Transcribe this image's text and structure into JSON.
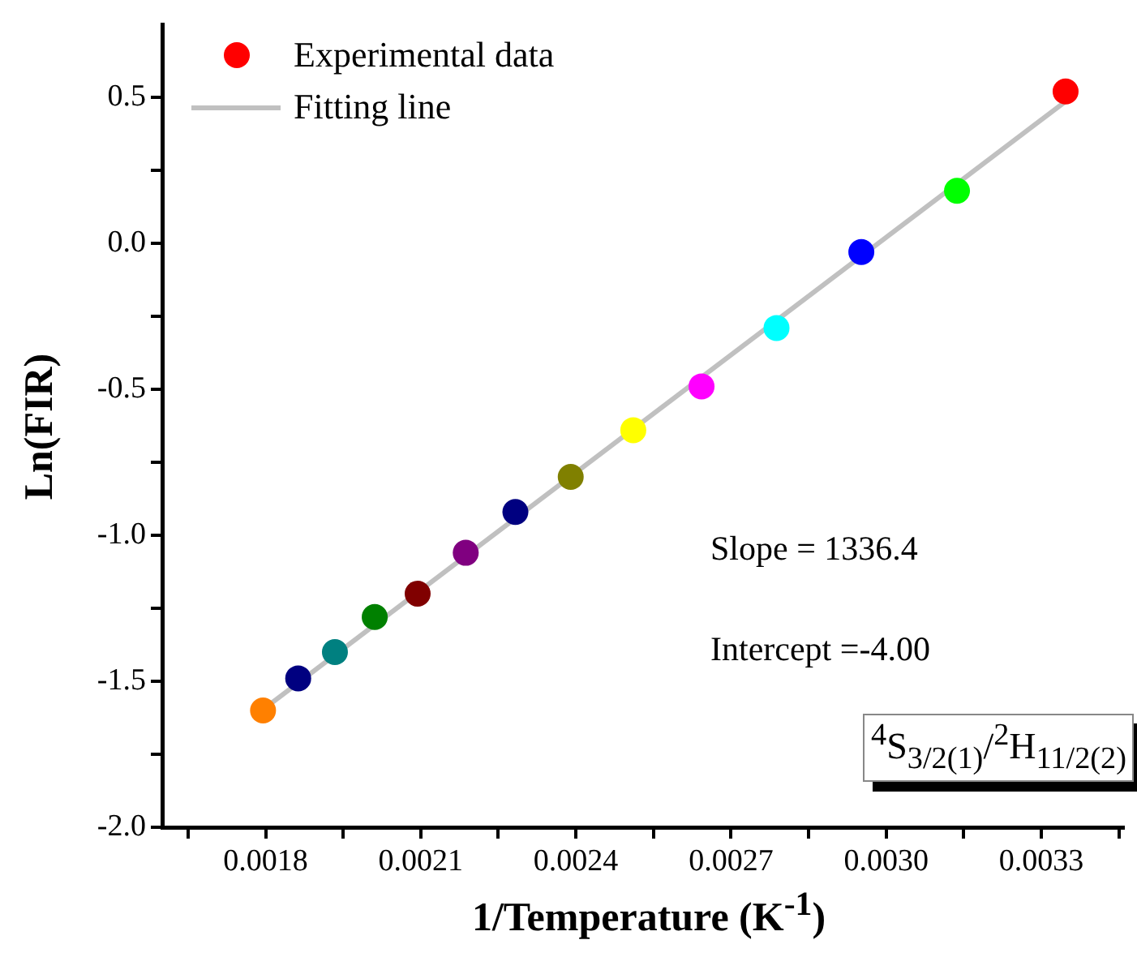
{
  "chart_data": {
    "type": "scatter",
    "xlabel": "1/Temperature (K$^{-1}$)",
    "ylabel": "Ln(FIR)",
    "annotations": [
      "Slope = 1336.4",
      "Intercept =-4.00",
      "$^{4}$S$_{3/2(1)}$/$^{2}$H$_{11/2(2)}$"
    ],
    "xlim": [
      0.0016,
      0.00346
    ],
    "ylim": [
      -2.0,
      0.75
    ],
    "xticks": [
      {
        "value": 0.00165,
        "label": null
      },
      0.0018,
      {
        "value": 0.00195,
        "label": null
      },
      0.0021,
      {
        "value": 0.00225,
        "label": null
      },
      0.0024,
      {
        "value": 0.00255,
        "label": null
      },
      0.0027,
      {
        "value": 0.00285,
        "label": null
      },
      {
        "value": 0.003,
        "label": "0.0030"
      },
      {
        "value": 0.00315,
        "label": null
      },
      0.0033,
      {
        "value": 0.00345,
        "label": null
      }
    ],
    "yticks": [
      {
        "value": -2,
        "label": "-2.0"
      },
      {
        "value": -1.75,
        "label": null
      },
      -1.5,
      {
        "value": -1.25,
        "label": null
      },
      {
        "value": -1,
        "label": "-1.0"
      },
      {
        "value": -0.75,
        "label": null
      },
      -0.5,
      {
        "value": -0.25,
        "label": null
      },
      {
        "value": 0,
        "label": "0.0"
      },
      {
        "value": 0.25,
        "label": null
      },
      0.5
    ],
    "legend": "top left",
    "series": [
      {
        "name": "Experimental data",
        "type": "scatter",
        "marker": "circle",
        "color": "#ff0000",
        "colors": [
          "#ff8000",
          "#000080",
          "#008080",
          "#008000",
          "#800000",
          "#800080",
          "#000080",
          "#808000",
          "#ffff00",
          "#ff00ff",
          "#00ffff",
          "#0000ff",
          "#00ff00",
          "#ff0000"
        ],
        "x": [
          0.001795,
          0.001863,
          0.001934,
          0.002011,
          0.002094,
          0.002187,
          0.002283,
          0.00239,
          0.002511,
          0.002643,
          0.002788,
          0.002952,
          0.003137,
          0.003347
        ],
        "values": [
          -1.6,
          -1.49,
          -1.4,
          -1.28,
          -1.2,
          -1.06,
          -0.92,
          -0.8,
          -0.64,
          -0.49,
          -0.29,
          -0.03,
          0.18,
          0.52
        ]
      },
      {
        "name": "Fitting line",
        "type": "line",
        "marker": "none",
        "line_style": "solid",
        "color": "#c0c0c0",
        "x": [
          0.0018,
          0.00335
        ],
        "values": [
          -1.59,
          0.49
        ]
      }
    ]
  }
}
